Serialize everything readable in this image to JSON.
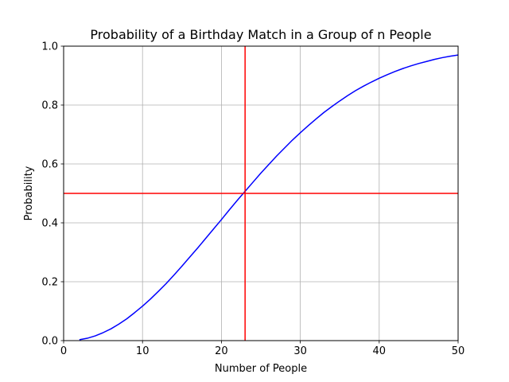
{
  "chart_data": {
    "type": "line",
    "title": "Probability of a Birthday Match in a Group of n People",
    "xlabel": "Number of People",
    "ylabel": "Probability",
    "xlim": [
      0,
      50
    ],
    "ylim": [
      0,
      1.0
    ],
    "xticks": [
      "0",
      "10",
      "20",
      "30",
      "40",
      "50"
    ],
    "yticks": [
      "0.0",
      "0.2",
      "0.4",
      "0.6",
      "0.8",
      "1.0"
    ],
    "grid": true,
    "series": [
      {
        "color": "#0000ff",
        "x": [
          2,
          3,
          4,
          5,
          6,
          7,
          8,
          9,
          10,
          11,
          12,
          13,
          14,
          15,
          16,
          17,
          18,
          19,
          20,
          21,
          22,
          23,
          24,
          25,
          26,
          27,
          28,
          29,
          30,
          31,
          32,
          33,
          34,
          35,
          36,
          37,
          38,
          39,
          40,
          41,
          42,
          43,
          44,
          45,
          46,
          47,
          48,
          49,
          50
        ],
        "y": [
          0.003,
          0.008,
          0.016,
          0.027,
          0.04,
          0.056,
          0.074,
          0.095,
          0.117,
          0.141,
          0.167,
          0.194,
          0.223,
          0.253,
          0.284,
          0.315,
          0.347,
          0.379,
          0.411,
          0.444,
          0.476,
          0.507,
          0.538,
          0.569,
          0.598,
          0.627,
          0.654,
          0.681,
          0.706,
          0.73,
          0.753,
          0.775,
          0.795,
          0.814,
          0.832,
          0.849,
          0.864,
          0.878,
          0.891,
          0.903,
          0.914,
          0.924,
          0.933,
          0.941,
          0.948,
          0.955,
          0.961,
          0.966,
          0.97
        ]
      }
    ],
    "reference_lines": [
      {
        "orientation": "horizontal",
        "value": 0.5,
        "color": "#ff0000"
      },
      {
        "orientation": "vertical",
        "value": 23,
        "color": "#ff0000"
      }
    ]
  }
}
